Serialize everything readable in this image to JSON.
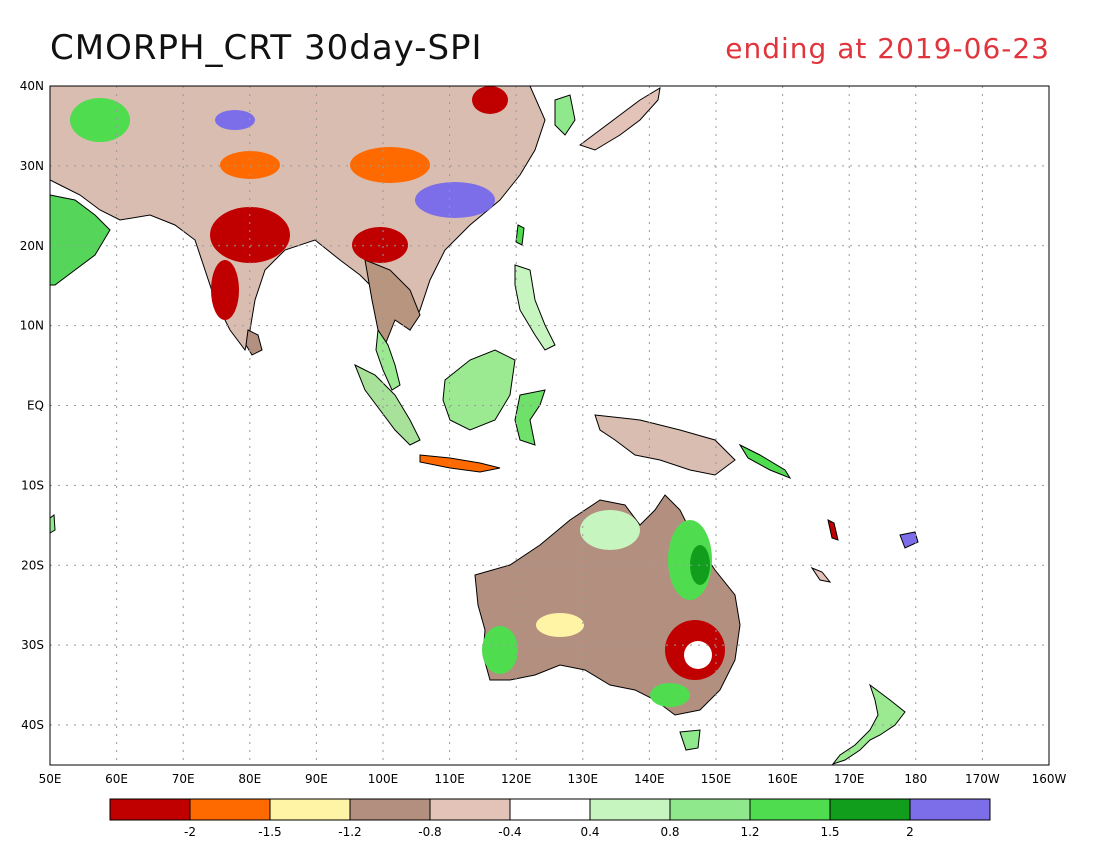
{
  "title": "CMORPH_CRT 30day-SPI",
  "subtitle": "ending at 2019-06-23",
  "map": {
    "lat_labels": [
      "40N",
      "30N",
      "20N",
      "10N",
      "EQ",
      "10S",
      "20S",
      "30S",
      "40S"
    ],
    "lat_values": [
      40,
      30,
      20,
      10,
      0,
      -10,
      -20,
      -30,
      -40
    ],
    "lon_labels": [
      "50E",
      "60E",
      "70E",
      "80E",
      "90E",
      "100E",
      "110E",
      "120E",
      "130E",
      "140E",
      "150E",
      "160E",
      "170E",
      "180",
      "170W",
      "160W"
    ],
    "lon_values": [
      50,
      60,
      70,
      80,
      90,
      100,
      110,
      120,
      130,
      140,
      150,
      160,
      170,
      180,
      190,
      200
    ],
    "lat_range": [
      -45,
      40
    ],
    "lon_range": [
      50,
      200
    ],
    "grid": "dotted"
  },
  "legend": {
    "labels": [
      "-2",
      "-1.5",
      "-1.2",
      "-0.8",
      "-0.4",
      "0.4",
      "0.8",
      "1.2",
      "1.5",
      "2"
    ],
    "colors": [
      "#c00000",
      "#ff6a00",
      "#fff3a6",
      "#b38f80",
      "#e3c3b7",
      "#ffffff",
      "#c7f5c0",
      "#8fe88c",
      "#4fdc4f",
      "#109e1c",
      "#7b6ee8"
    ]
  },
  "colors": {
    "land_outline": "#000000",
    "title_accent": "#e0353d"
  }
}
